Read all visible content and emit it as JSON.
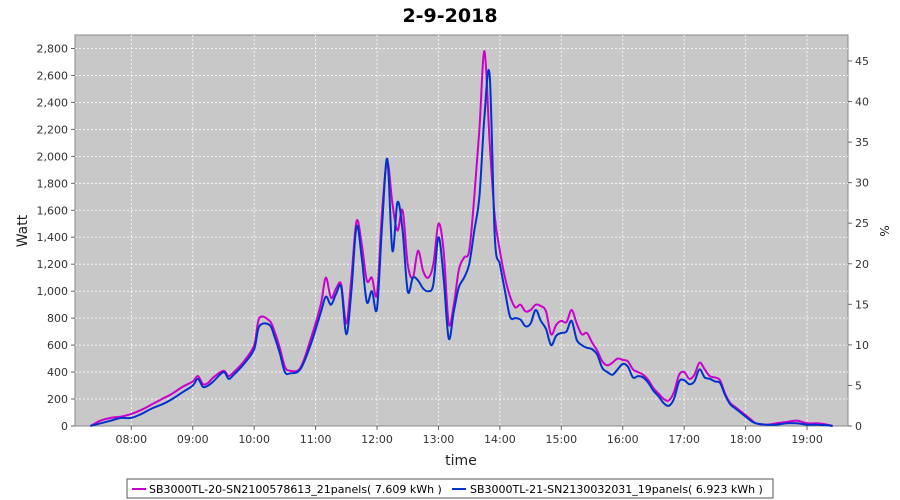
{
  "chart_data": {
    "type": "line",
    "title": "2-9-2018",
    "xlabel": "time",
    "ylabel": "Watt",
    "y2label": "%",
    "ylim": [
      0,
      2900
    ],
    "y2lim": [
      0,
      48.2
    ],
    "xlim": [
      "07:05",
      "19:40"
    ],
    "y_ticks": [
      "0",
      "200",
      "400",
      "600",
      "800",
      "1,000",
      "1,200",
      "1,400",
      "1,600",
      "1,800",
      "2,000",
      "2,200",
      "2,400",
      "2,600",
      "2,800"
    ],
    "y2_ticks": [
      "0",
      "5",
      "10",
      "15",
      "20",
      "25",
      "30",
      "35",
      "40",
      "45"
    ],
    "x_ticks": [
      "08:00",
      "09:00",
      "10:00",
      "11:00",
      "12:00",
      "13:00",
      "14:00",
      "15:00",
      "16:00",
      "17:00",
      "18:00",
      "19:00"
    ],
    "grid": true,
    "legend_position": "bottom",
    "series": [
      {
        "name": "SB3000TL-20-SN2100578613_21panels( 7.609 kWh )",
        "color": "#cc00cc",
        "points": [
          [
            "07:20",
            0
          ],
          [
            "07:30",
            40
          ],
          [
            "07:40",
            60
          ],
          [
            "07:50",
            70
          ],
          [
            "08:00",
            90
          ],
          [
            "08:10",
            120
          ],
          [
            "08:20",
            160
          ],
          [
            "08:30",
            200
          ],
          [
            "08:40",
            240
          ],
          [
            "08:50",
            290
          ],
          [
            "09:00",
            330
          ],
          [
            "09:05",
            370
          ],
          [
            "09:10",
            310
          ],
          [
            "09:15",
            320
          ],
          [
            "09:20",
            360
          ],
          [
            "09:30",
            410
          ],
          [
            "09:35",
            370
          ],
          [
            "09:40",
            400
          ],
          [
            "09:50",
            480
          ],
          [
            "10:00",
            600
          ],
          [
            "10:05",
            800
          ],
          [
            "10:15",
            780
          ],
          [
            "10:20",
            700
          ],
          [
            "10:25",
            580
          ],
          [
            "10:30",
            440
          ],
          [
            "10:35",
            410
          ],
          [
            "10:45",
            430
          ],
          [
            "10:55",
            640
          ],
          [
            "11:05",
            900
          ],
          [
            "11:10",
            1100
          ],
          [
            "11:15",
            950
          ],
          [
            "11:20",
            1020
          ],
          [
            "11:25",
            1050
          ],
          [
            "11:30",
            760
          ],
          [
            "11:35",
            1100
          ],
          [
            "11:40",
            1520
          ],
          [
            "11:45",
            1350
          ],
          [
            "11:50",
            1080
          ],
          [
            "11:55",
            1100
          ],
          [
            "12:00",
            980
          ],
          [
            "12:05",
            1600
          ],
          [
            "12:10",
            1960
          ],
          [
            "12:15",
            1650
          ],
          [
            "12:20",
            1450
          ],
          [
            "12:25",
            1600
          ],
          [
            "12:30",
            1200
          ],
          [
            "12:35",
            1100
          ],
          [
            "12:40",
            1300
          ],
          [
            "12:45",
            1150
          ],
          [
            "12:50",
            1100
          ],
          [
            "12:55",
            1200
          ],
          [
            "13:00",
            1500
          ],
          [
            "13:05",
            1300
          ],
          [
            "13:10",
            760
          ],
          [
            "13:15",
            900
          ],
          [
            "13:20",
            1160
          ],
          [
            "13:25",
            1250
          ],
          [
            "13:30",
            1300
          ],
          [
            "13:35",
            1700
          ],
          [
            "13:40",
            2200
          ],
          [
            "13:45",
            2780
          ],
          [
            "13:50",
            2100
          ],
          [
            "13:55",
            1550
          ],
          [
            "14:00",
            1300
          ],
          [
            "14:05",
            1100
          ],
          [
            "14:10",
            960
          ],
          [
            "14:15",
            880
          ],
          [
            "14:20",
            900
          ],
          [
            "14:25",
            850
          ],
          [
            "14:30",
            860
          ],
          [
            "14:35",
            900
          ],
          [
            "14:40",
            890
          ],
          [
            "14:45",
            850
          ],
          [
            "14:50",
            680
          ],
          [
            "14:55",
            750
          ],
          [
            "15:00",
            780
          ],
          [
            "15:05",
            770
          ],
          [
            "15:10",
            860
          ],
          [
            "15:15",
            760
          ],
          [
            "15:20",
            680
          ],
          [
            "15:25",
            690
          ],
          [
            "15:30",
            620
          ],
          [
            "15:35",
            560
          ],
          [
            "15:40",
            480
          ],
          [
            "15:45",
            450
          ],
          [
            "15:50",
            470
          ],
          [
            "15:55",
            500
          ],
          [
            "16:00",
            490
          ],
          [
            "16:05",
            480
          ],
          [
            "16:10",
            420
          ],
          [
            "16:15",
            400
          ],
          [
            "16:20",
            380
          ],
          [
            "16:25",
            340
          ],
          [
            "16:30",
            280
          ],
          [
            "16:35",
            240
          ],
          [
            "16:40",
            200
          ],
          [
            "16:45",
            190
          ],
          [
            "16:50",
            250
          ],
          [
            "16:55",
            380
          ],
          [
            "17:00",
            400
          ],
          [
            "17:05",
            350
          ],
          [
            "17:10",
            380
          ],
          [
            "17:15",
            470
          ],
          [
            "17:20",
            420
          ],
          [
            "17:25",
            370
          ],
          [
            "17:30",
            360
          ],
          [
            "17:35",
            340
          ],
          [
            "17:40",
            240
          ],
          [
            "17:45",
            170
          ],
          [
            "17:50",
            140
          ],
          [
            "17:55",
            110
          ],
          [
            "18:00",
            80
          ],
          [
            "18:05",
            50
          ],
          [
            "18:10",
            20
          ],
          [
            "18:20",
            10
          ],
          [
            "18:30",
            20
          ],
          [
            "18:40",
            30
          ],
          [
            "18:50",
            40
          ],
          [
            "19:00",
            20
          ],
          [
            "19:10",
            20
          ],
          [
            "19:20",
            10
          ],
          [
            "19:25",
            0
          ]
        ]
      },
      {
        "name": "SB3000TL-21-SN2130032031_19panels( 6.923 kWh )",
        "color": "#0033cc",
        "points": [
          [
            "07:20",
            0
          ],
          [
            "07:30",
            20
          ],
          [
            "07:40",
            40
          ],
          [
            "07:50",
            60
          ],
          [
            "08:00",
            60
          ],
          [
            "08:10",
            90
          ],
          [
            "08:20",
            130
          ],
          [
            "08:30",
            160
          ],
          [
            "08:40",
            200
          ],
          [
            "08:50",
            250
          ],
          [
            "09:00",
            300
          ],
          [
            "09:05",
            350
          ],
          [
            "09:10",
            290
          ],
          [
            "09:15",
            300
          ],
          [
            "09:20",
            330
          ],
          [
            "09:30",
            400
          ],
          [
            "09:35",
            350
          ],
          [
            "09:40",
            380
          ],
          [
            "09:50",
            460
          ],
          [
            "10:00",
            570
          ],
          [
            "10:05",
            740
          ],
          [
            "10:15",
            750
          ],
          [
            "10:20",
            660
          ],
          [
            "10:25",
            540
          ],
          [
            "10:30",
            400
          ],
          [
            "10:35",
            390
          ],
          [
            "10:45",
            420
          ],
          [
            "10:55",
            600
          ],
          [
            "11:05",
            840
          ],
          [
            "11:10",
            960
          ],
          [
            "11:15",
            900
          ],
          [
            "11:20",
            980
          ],
          [
            "11:25",
            1030
          ],
          [
            "11:30",
            680
          ],
          [
            "11:35",
            1000
          ],
          [
            "11:40",
            1480
          ],
          [
            "11:45",
            1250
          ],
          [
            "11:50",
            920
          ],
          [
            "11:55",
            1000
          ],
          [
            "12:00",
            870
          ],
          [
            "12:05",
            1500
          ],
          [
            "12:10",
            1980
          ],
          [
            "12:15",
            1300
          ],
          [
            "12:20",
            1660
          ],
          [
            "12:25",
            1450
          ],
          [
            "12:30",
            1000
          ],
          [
            "12:35",
            1100
          ],
          [
            "12:40",
            1080
          ],
          [
            "12:45",
            1020
          ],
          [
            "12:50",
            1000
          ],
          [
            "12:55",
            1050
          ],
          [
            "13:00",
            1400
          ],
          [
            "13:05",
            1100
          ],
          [
            "13:10",
            650
          ],
          [
            "13:15",
            850
          ],
          [
            "13:20",
            1030
          ],
          [
            "13:25",
            1100
          ],
          [
            "13:30",
            1200
          ],
          [
            "13:35",
            1450
          ],
          [
            "13:40",
            1700
          ],
          [
            "13:45",
            2300
          ],
          [
            "13:50",
            2600
          ],
          [
            "13:55",
            1400
          ],
          [
            "14:00",
            1200
          ],
          [
            "14:05",
            1000
          ],
          [
            "14:10",
            810
          ],
          [
            "14:15",
            800
          ],
          [
            "14:20",
            790
          ],
          [
            "14:25",
            740
          ],
          [
            "14:30",
            760
          ],
          [
            "14:35",
            860
          ],
          [
            "14:40",
            780
          ],
          [
            "14:45",
            720
          ],
          [
            "14:50",
            600
          ],
          [
            "14:55",
            670
          ],
          [
            "15:00",
            690
          ],
          [
            "15:05",
            700
          ],
          [
            "15:10",
            780
          ],
          [
            "15:15",
            640
          ],
          [
            "15:20",
            600
          ],
          [
            "15:25",
            580
          ],
          [
            "15:30",
            570
          ],
          [
            "15:35",
            530
          ],
          [
            "15:40",
            430
          ],
          [
            "15:45",
            400
          ],
          [
            "15:50",
            380
          ],
          [
            "15:55",
            420
          ],
          [
            "16:00",
            460
          ],
          [
            "16:05",
            440
          ],
          [
            "16:10",
            360
          ],
          [
            "16:15",
            370
          ],
          [
            "16:20",
            360
          ],
          [
            "16:25",
            320
          ],
          [
            "16:30",
            260
          ],
          [
            "16:35",
            220
          ],
          [
            "16:40",
            170
          ],
          [
            "16:45",
            150
          ],
          [
            "16:50",
            200
          ],
          [
            "16:55",
            330
          ],
          [
            "17:00",
            340
          ],
          [
            "17:05",
            310
          ],
          [
            "17:10",
            330
          ],
          [
            "17:15",
            420
          ],
          [
            "17:20",
            360
          ],
          [
            "17:25",
            350
          ],
          [
            "17:30",
            330
          ],
          [
            "17:35",
            320
          ],
          [
            "17:40",
            230
          ],
          [
            "17:45",
            160
          ],
          [
            "17:50",
            130
          ],
          [
            "17:55",
            100
          ],
          [
            "18:00",
            70
          ],
          [
            "18:05",
            40
          ],
          [
            "18:10",
            20
          ],
          [
            "18:20",
            10
          ],
          [
            "18:30",
            10
          ],
          [
            "18:40",
            20
          ],
          [
            "18:50",
            20
          ],
          [
            "19:00",
            10
          ],
          [
            "19:10",
            10
          ],
          [
            "19:20",
            5
          ],
          [
            "19:25",
            0
          ]
        ]
      }
    ]
  }
}
